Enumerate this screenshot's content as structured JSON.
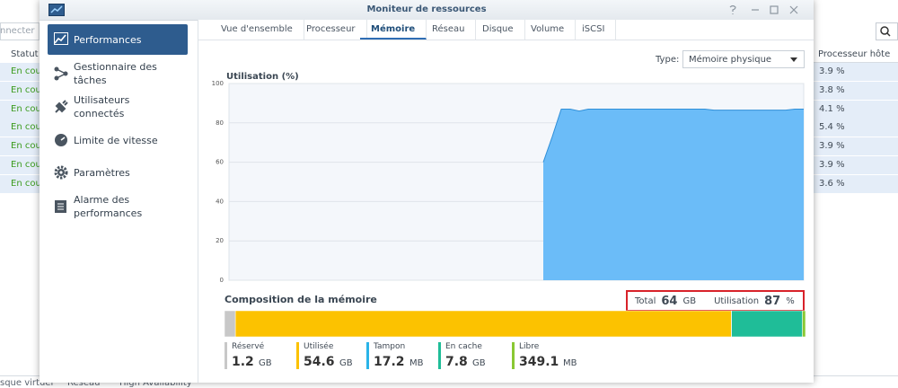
{
  "background": {
    "search_placeholder": "nnecter",
    "status_header": "Statut",
    "cpu_header": "Processeur hôte",
    "rows": [
      {
        "status": "En cour",
        "cpu": "3.9 %"
      },
      {
        "status": "En cour",
        "cpu": "3.8 %"
      },
      {
        "status": "En cour",
        "cpu": "4.1 %"
      },
      {
        "status": "En cour",
        "cpu": "5.4 %"
      },
      {
        "status": "En cour",
        "cpu": "3.9 %"
      },
      {
        "status": "En cour",
        "cpu": "3.9 %"
      },
      {
        "status": "En cour",
        "cpu": "3.6 %"
      }
    ],
    "bottom_tabs": [
      "sque virtuel",
      "Réseau",
      "High Availability"
    ]
  },
  "window": {
    "title": "Moniteur de ressources"
  },
  "sidebar": {
    "selected": 0,
    "items": [
      "Performances",
      "Gestionnaire des tâches",
      "Utilisateurs connectés",
      "Limite de vitesse",
      "Paramètres",
      "Alarme des performances"
    ]
  },
  "tabs": {
    "selected": 2,
    "items": [
      "Vue d'ensemble",
      "Processeur",
      "Mémoire",
      "Réseau",
      "Disque",
      "Volume",
      "iSCSI"
    ]
  },
  "type_label": "Type:",
  "type_value": "Mémoire physique",
  "chart": {
    "type": "area",
    "title": "Utilisation (%)",
    "color": "#6bbcf8",
    "ylim": [
      0,
      100
    ],
    "yticks": [
      0,
      20,
      40,
      60,
      80,
      100
    ],
    "grid": true,
    "values": [
      null,
      null,
      null,
      null,
      null,
      null,
      null,
      null,
      null,
      null,
      null,
      null,
      null,
      null,
      null,
      null,
      null,
      null,
      null,
      null,
      null,
      null,
      null,
      null,
      null,
      null,
      null,
      null,
      null,
      null,
      null,
      null,
      null,
      null,
      null,
      60,
      73,
      87,
      87,
      86,
      87,
      87,
      87,
      87,
      87,
      87,
      87,
      87,
      87,
      87,
      87,
      87,
      87,
      87,
      86.5,
      86.5,
      86.5,
      86.5,
      86.5,
      86.5,
      86.5,
      86.5,
      86.5,
      87,
      87
    ]
  },
  "composition": {
    "title": "Composition de la mémoire",
    "total_label": "Total",
    "total_value": 64,
    "total_unit": "GB",
    "usage_label": "Utilisation",
    "usage_value": 87,
    "usage_unit": "%",
    "segments": [
      {
        "name": "Réservé",
        "value": 1.2,
        "unit": "GB",
        "color": "#c8c8c8"
      },
      {
        "name": "Utilisée",
        "value": 54.6,
        "unit": "GB",
        "color": "#fcc200"
      },
      {
        "name": "Tampon",
        "value": 17.2,
        "unit": "MB",
        "color": "#2ab4e8"
      },
      {
        "name": "En cache",
        "value": 7.8,
        "unit": "GB",
        "color": "#1fbd98"
      },
      {
        "name": "Libre",
        "value": 349.1,
        "unit": "MB",
        "color": "#8ac833"
      }
    ]
  }
}
